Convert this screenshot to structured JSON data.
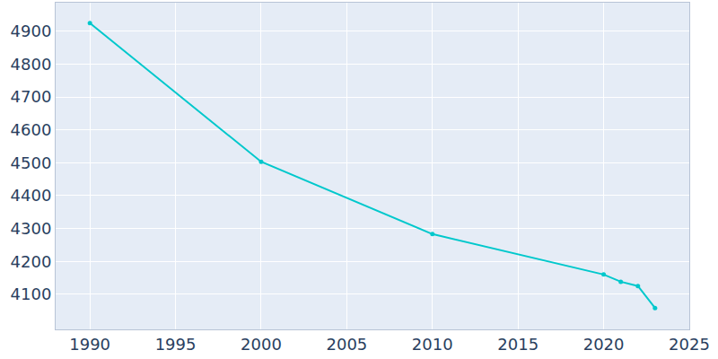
{
  "chart_data": {
    "type": "line",
    "x": [
      1990,
      2000,
      2010,
      2020,
      2021,
      2022,
      2023
    ],
    "values": [
      4925,
      4503,
      4283,
      4160,
      4138,
      4125,
      4058
    ],
    "color": "#00c8cc",
    "marker": "circle",
    "xlim": [
      1988,
      2025
    ],
    "xticks": [
      1990,
      1995,
      2000,
      2005,
      2010,
      2015,
      2020,
      2025
    ],
    "ylim": [
      3993,
      4987
    ],
    "yticks": [
      4100,
      4200,
      4300,
      4400,
      4500,
      4600,
      4700,
      4800,
      4900
    ],
    "grid": true
  }
}
